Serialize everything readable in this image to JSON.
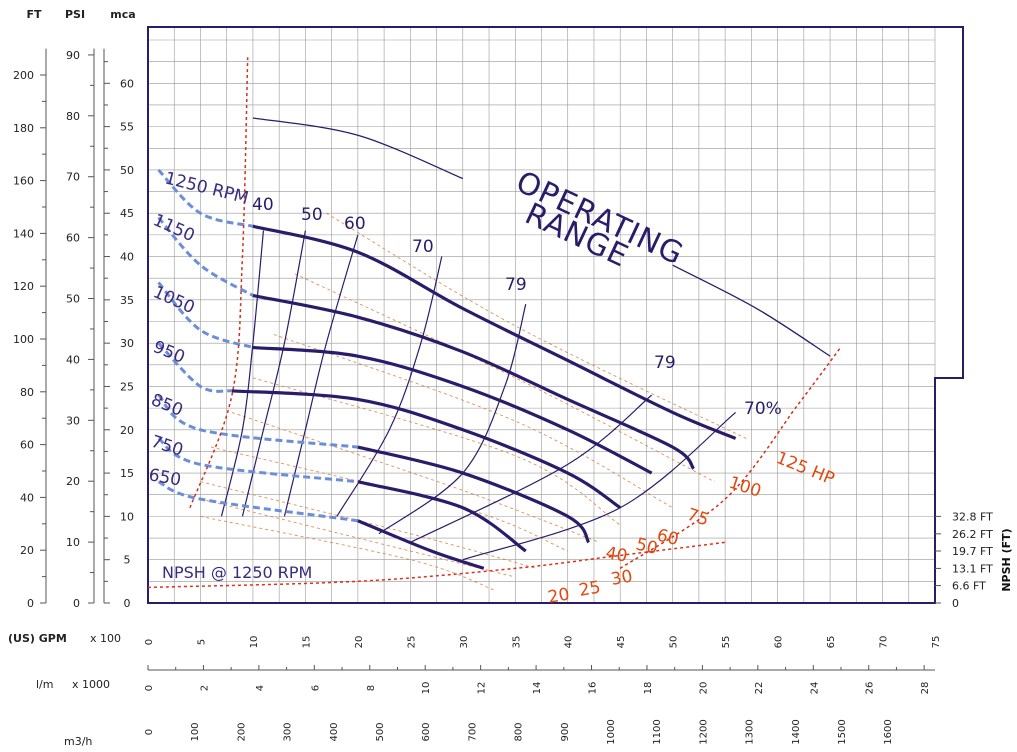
{
  "chart_data": {
    "type": "line",
    "left_axes": [
      {
        "unit": "FT",
        "ticks": [
          "0",
          "20",
          "40",
          "60",
          "80",
          "100",
          "120",
          "140",
          "160",
          "180",
          "200"
        ]
      },
      {
        "unit": "PSI",
        "ticks": [
          "0",
          "10",
          "20",
          "30",
          "40",
          "50",
          "60",
          "70",
          "80",
          "90"
        ]
      },
      {
        "unit": "mca",
        "ticks": [
          "0",
          "5",
          "10",
          "15",
          "20",
          "25",
          "30",
          "35",
          "40",
          "45",
          "50",
          "55",
          "60"
        ]
      }
    ],
    "bottom_axes": [
      {
        "label": "(US) GPM",
        "scale": "x 100",
        "ticks": [
          "0",
          "5",
          "10",
          "15",
          "20",
          "25",
          "30",
          "35",
          "40",
          "45",
          "50",
          "55",
          "60",
          "65",
          "70",
          "75"
        ]
      },
      {
        "label": "l/m",
        "scale": "x 1000",
        "ticks": [
          "0",
          "2",
          "4",
          "6",
          "8",
          "10",
          "12",
          "14",
          "16",
          "18",
          "20",
          "22",
          "24",
          "26",
          "28"
        ]
      },
      {
        "label": "m3/h",
        "scale": "",
        "ticks": [
          "0",
          "100",
          "200",
          "300",
          "400",
          "500",
          "600",
          "700",
          "800",
          "900",
          "1000",
          "1100",
          "1200",
          "1300",
          "1400",
          "1500",
          "1600"
        ]
      }
    ],
    "right_axis": {
      "label": "NPSH (FT)",
      "ticks": [
        "0",
        "6.6 FT",
        "13.1 FT",
        "19.7 FT",
        "26.2 FT",
        "32.8 FT"
      ]
    },
    "xlim_gpm_x100": [
      0,
      75
    ],
    "ylim_mca": [
      0,
      65
    ],
    "grid": true,
    "head_curves": [
      {
        "name": "1250 RPM",
        "points": [
          [
            1,
            50
          ],
          [
            5,
            45
          ],
          [
            10,
            43.5
          ],
          [
            20,
            40.5
          ],
          [
            30,
            34
          ],
          [
            40,
            28
          ],
          [
            50,
            22
          ],
          [
            56,
            19
          ]
        ]
      },
      {
        "name": "1150",
        "points": [
          [
            1,
            44.5
          ],
          [
            5,
            39
          ],
          [
            10,
            35.5
          ],
          [
            20,
            33
          ],
          [
            30,
            29
          ],
          [
            40,
            23.5
          ],
          [
            50,
            18
          ],
          [
            52,
            15.5
          ]
        ]
      },
      {
        "name": "1050",
        "points": [
          [
            1,
            37
          ],
          [
            5,
            31.5
          ],
          [
            10,
            29.5
          ],
          [
            20,
            28.5
          ],
          [
            30,
            25
          ],
          [
            40,
            20
          ],
          [
            48,
            15
          ]
        ]
      },
      {
        "name": "950",
        "points": [
          [
            1,
            30
          ],
          [
            5,
            25
          ],
          [
            8,
            24.5
          ],
          [
            20,
            23.5
          ],
          [
            30,
            20
          ],
          [
            40,
            15
          ],
          [
            45,
            11
          ]
        ]
      },
      {
        "name": "850",
        "points": [
          [
            1,
            24
          ],
          [
            5,
            20
          ],
          [
            20,
            18
          ],
          [
            30,
            15
          ],
          [
            40,
            10
          ],
          [
            42,
            7
          ]
        ]
      },
      {
        "name": "750",
        "points": [
          [
            1,
            19
          ],
          [
            5,
            16
          ],
          [
            20,
            14
          ],
          [
            30,
            11
          ],
          [
            36,
            6
          ]
        ]
      },
      {
        "name": "650",
        "points": [
          [
            1,
            14
          ],
          [
            5,
            12
          ],
          [
            20,
            9.5
          ],
          [
            27,
            6
          ],
          [
            32,
            4
          ]
        ]
      }
    ],
    "efficiency_curves": [
      {
        "name": "40",
        "points": [
          [
            7,
            10
          ],
          [
            9,
            20
          ],
          [
            10,
            30
          ],
          [
            11,
            43
          ]
        ]
      },
      {
        "name": "50",
        "points": [
          [
            9,
            10
          ],
          [
            11,
            20
          ],
          [
            13,
            30
          ],
          [
            15,
            43
          ]
        ]
      },
      {
        "name": "60",
        "points": [
          [
            13,
            10
          ],
          [
            15,
            20
          ],
          [
            17,
            30
          ],
          [
            20,
            42.5
          ]
        ]
      },
      {
        "name": "70",
        "points": [
          [
            18,
            10
          ],
          [
            23,
            20
          ],
          [
            26,
            30
          ],
          [
            28,
            40
          ]
        ]
      },
      {
        "name": "79",
        "points": [
          [
            22,
            8
          ],
          [
            30,
            15
          ],
          [
            34,
            25
          ],
          [
            36,
            34.5
          ]
        ]
      },
      {
        "name": "79",
        "points": [
          [
            25,
            7
          ],
          [
            40,
            16
          ],
          [
            48,
            24
          ]
        ]
      },
      {
        "name": "70%",
        "points": [
          [
            30,
            5
          ],
          [
            45,
            11
          ],
          [
            56,
            22
          ]
        ]
      }
    ],
    "power_curves": [
      {
        "name": "125 HP",
        "points": [
          [
            17,
            45
          ],
          [
            35,
            32
          ],
          [
            57,
            19
          ]
        ]
      },
      {
        "name": "100",
        "points": [
          [
            14,
            38
          ],
          [
            35,
            26
          ],
          [
            54,
            14
          ]
        ]
      },
      {
        "name": "75",
        "points": [
          [
            12,
            31
          ],
          [
            35,
            21
          ],
          [
            50,
            11
          ]
        ]
      },
      {
        "name": "60",
        "points": [
          [
            10,
            26
          ],
          [
            35,
            17
          ],
          [
            45,
            9
          ]
        ]
      },
      {
        "name": "50",
        "points": [
          [
            8,
            22
          ],
          [
            30,
            13
          ],
          [
            43,
            7
          ]
        ]
      },
      {
        "name": "40",
        "points": [
          [
            6,
            18
          ],
          [
            30,
            11
          ],
          [
            40,
            6
          ]
        ]
      },
      {
        "name": "30",
        "points": [
          [
            5,
            14
          ],
          [
            25,
            8
          ],
          [
            37,
            4
          ]
        ]
      },
      {
        "name": "25",
        "points": [
          [
            5,
            12
          ],
          [
            25,
            6
          ],
          [
            35,
            3
          ]
        ]
      },
      {
        "name": "20",
        "points": [
          [
            5,
            10
          ],
          [
            25,
            5
          ],
          [
            33,
            1.5
          ]
        ]
      }
    ],
    "npsh_curve": {
      "name": "NPSH @ 1250 RPM",
      "points": [
        [
          0,
          1.8
        ],
        [
          20,
          2.5
        ],
        [
          35,
          4
        ],
        [
          45,
          5.5
        ],
        [
          55,
          7
        ]
      ]
    },
    "operating_range_label": [
      "OPERATING",
      "RANGE"
    ],
    "operating_range_boundary": [
      [
        10,
        56
      ],
      [
        20,
        54
      ],
      [
        30,
        49
      ],
      [
        50,
        39
      ],
      [
        58,
        34
      ],
      [
        65,
        28.5
      ]
    ],
    "operating_range_left_limit": [
      [
        4,
        11
      ],
      [
        8,
        24
      ],
      [
        9,
        40
      ],
      [
        9.5,
        63
      ]
    ],
    "operating_range_right_limit": [
      [
        45,
        4
      ],
      [
        55,
        12
      ],
      [
        62,
        23
      ],
      [
        66,
        29.5
      ]
    ]
  }
}
